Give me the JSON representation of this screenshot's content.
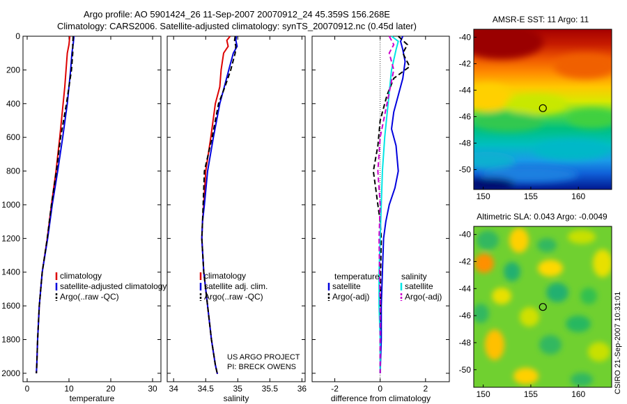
{
  "header": {
    "title_line1": "Argo profile: AO 5901424_26 11-Sep-2007 20070912_24 45.359S 156.268E",
    "title_line2": "Climatology: CARS2006. Satellite-adjusted climatology: synTS_20070912.nc (0.45d later)"
  },
  "footer": {
    "project": "US ARGO PROJECT",
    "pi": "PI: BRECK OWENS",
    "credit": "CSIRO 21-Sep-2007 10:31:01"
  },
  "colors": {
    "climatology": "#dd0000",
    "satellite": "#0000dd",
    "argo": "#000000",
    "satellite_salinity": "#00e5e5",
    "argo_salinity": "#cc00cc"
  },
  "chart_data": [
    {
      "id": "temperature",
      "type": "line",
      "xlabel": "temperature",
      "xlim": [
        -1,
        32
      ],
      "ylim": [
        2050,
        0
      ],
      "xticks": [
        0,
        10,
        20,
        30
      ],
      "yticks": [
        0,
        200,
        400,
        600,
        800,
        1000,
        1200,
        1400,
        1600,
        1800,
        2000
      ],
      "legend": [
        "climatology",
        "satellite-adjusted climatology",
        "Argo(..raw -QC)"
      ],
      "series": [
        {
          "name": "climatology",
          "color": "#dd0000",
          "width": 2,
          "dash": "",
          "x": [
            10.2,
            10.0,
            9.6,
            9.3,
            9.0,
            8.6,
            7.8,
            6.9,
            5.8,
            4.8,
            3.6,
            2.9,
            2.5,
            2.3,
            2.2
          ],
          "y": [
            0,
            50,
            100,
            200,
            300,
            400,
            600,
            800,
            1000,
            1200,
            1400,
            1600,
            1800,
            1950,
            2000
          ]
        },
        {
          "name": "satellite-adjusted climatology",
          "color": "#0000dd",
          "width": 2,
          "dash": "",
          "x": [
            11.2,
            11.0,
            10.7,
            10.4,
            10.0,
            9.6,
            8.5,
            7.3,
            6.0,
            4.9,
            3.6,
            2.9,
            2.5,
            2.3,
            2.2
          ],
          "y": [
            0,
            50,
            100,
            200,
            300,
            400,
            600,
            800,
            1000,
            1200,
            1400,
            1600,
            1800,
            1950,
            2000
          ]
        },
        {
          "name": "Argo(..raw -QC)",
          "color": "#000000",
          "width": 2,
          "dash": "7,4",
          "x": [
            11.0,
            10.9,
            10.9,
            10.6,
            10.0,
            9.4,
            8.0,
            7.0,
            5.8,
            4.8,
            3.6,
            2.9,
            2.5,
            2.3,
            2.2
          ],
          "y": [
            0,
            50,
            100,
            200,
            300,
            400,
            600,
            800,
            1000,
            1200,
            1400,
            1600,
            1800,
            1950,
            2000
          ]
        }
      ]
    },
    {
      "id": "salinity",
      "type": "line",
      "xlabel": "salinity",
      "xlim": [
        33.9,
        36.05
      ],
      "ylim": [
        2050,
        0
      ],
      "xticks": [
        34,
        34.5,
        35,
        35.5,
        36
      ],
      "xticklabels": [
        "34",
        "34.5",
        "35",
        "35.5",
        "36"
      ],
      "yticks": [
        0,
        200,
        400,
        600,
        800,
        1000,
        1200,
        1400,
        1600,
        1800,
        2000
      ],
      "legend": [
        "climatology",
        "satellite adj. clim.",
        "Argo(..raw -QC)"
      ],
      "series": [
        {
          "name": "climatology",
          "color": "#dd0000",
          "width": 2,
          "dash": "",
          "x": [
            34.88,
            34.83,
            34.85,
            34.78,
            34.74,
            34.72,
            34.65,
            34.58,
            34.5,
            34.47,
            34.45,
            34.44,
            34.47,
            34.53,
            34.59,
            34.65,
            34.68,
            34.69
          ],
          "y": [
            0,
            25,
            60,
            100,
            200,
            300,
            400,
            600,
            800,
            1000,
            1100,
            1200,
            1400,
            1600,
            1800,
            1950,
            2000,
            2000
          ]
        },
        {
          "name": "satellite adj. clim.",
          "color": "#0000dd",
          "width": 2,
          "dash": "",
          "x": [
            34.98,
            34.97,
            34.99,
            34.93,
            34.86,
            34.79,
            34.72,
            34.62,
            34.53,
            34.48,
            34.45,
            34.44,
            34.47,
            34.53,
            34.59,
            34.65,
            34.68,
            34.69
          ],
          "y": [
            0,
            25,
            60,
            100,
            200,
            300,
            400,
            600,
            800,
            1000,
            1100,
            1200,
            1400,
            1600,
            1800,
            1950,
            2000,
            2000
          ]
        },
        {
          "name": "Argo(..raw -QC)",
          "color": "#000000",
          "width": 2,
          "dash": "7,4",
          "x": [
            34.96,
            34.95,
            34.97,
            34.96,
            34.89,
            34.8,
            34.7,
            34.6,
            34.48,
            34.46,
            34.45,
            34.44,
            34.47,
            34.53,
            34.59,
            34.65,
            34.68,
            34.69
          ],
          "y": [
            0,
            25,
            60,
            100,
            200,
            300,
            400,
            600,
            800,
            1000,
            1100,
            1200,
            1400,
            1600,
            1800,
            1950,
            2000,
            2000
          ]
        }
      ]
    },
    {
      "id": "difference",
      "type": "line",
      "xlabel": "difference from climatology",
      "xlim": [
        -3,
        3.05
      ],
      "ylim": [
        2050,
        0
      ],
      "xticks": [
        -2,
        0,
        2
      ],
      "yticks": [
        0,
        200,
        400,
        600,
        800,
        1000,
        1200,
        1400,
        1600,
        1800,
        2000
      ],
      "legend_left_title": "temperature",
      "legend_left": [
        "satellite",
        "Argo(-adj)"
      ],
      "legend_right_title": "salinity",
      "legend_right": [
        "satellite",
        "Argo(-adj)"
      ],
      "series": [
        {
          "name": "temperature satellite",
          "color": "#0000dd",
          "width": 2,
          "dash": "",
          "x": [
            1.0,
            0.9,
            1.0,
            1.1,
            1.0,
            0.8,
            0.6,
            0.5,
            0.7,
            0.8,
            0.65,
            0.4,
            0.25,
            0.15,
            0.1,
            0.05,
            0.05,
            0.0
          ],
          "y": [
            0,
            30,
            80,
            150,
            250,
            350,
            450,
            550,
            650,
            800,
            900,
            1000,
            1100,
            1200,
            1400,
            1600,
            1800,
            2000
          ]
        },
        {
          "name": "temperature Argo(-adj)",
          "color": "#000000",
          "width": 2,
          "dash": "7,4",
          "x": [
            0.8,
            1.2,
            1.0,
            1.3,
            0.6,
            0.3,
            0.0,
            -0.1,
            -0.3,
            -0.2,
            -0.1,
            0.0,
            0.05,
            0.02,
            0.0,
            0.0
          ],
          "y": [
            0,
            50,
            100,
            180,
            250,
            350,
            500,
            650,
            800,
            900,
            1000,
            1100,
            1200,
            1400,
            1700,
            2000
          ]
        },
        {
          "name": "salinity satellite",
          "color": "#00e5e5",
          "width": 2,
          "dash": "",
          "x": [
            0.5,
            0.8,
            0.7,
            0.5,
            0.35,
            0.2,
            0.1,
            0.05,
            0.0,
            -0.05,
            -0.05,
            0.0,
            0.0
          ],
          "y": [
            0,
            30,
            80,
            200,
            400,
            600,
            800,
            1000,
            1200,
            1400,
            1600,
            1800,
            2000
          ]
        },
        {
          "name": "salinity Argo(-adj)",
          "color": "#cc00cc",
          "width": 2,
          "dash": "7,4",
          "x": [
            0.4,
            0.6,
            0.4,
            0.6,
            0.3,
            0.0,
            -0.1,
            0.0,
            -0.05,
            0.0,
            0.0
          ],
          "y": [
            0,
            50,
            100,
            200,
            400,
            600,
            800,
            1000,
            1200,
            1600,
            2000
          ]
        }
      ]
    },
    {
      "id": "sst-map",
      "type": "heatmap",
      "title": "AMSR-E SST: 11 Argo: 11",
      "xlim": [
        149,
        163.5
      ],
      "ylim": [
        -51.5,
        -39.4
      ],
      "xticks": [
        150,
        155,
        160
      ],
      "yticks": [
        -40,
        -42,
        -44,
        -46,
        -48,
        -50
      ],
      "marker": {
        "lon": 156.27,
        "lat": -45.36
      }
    },
    {
      "id": "sla-map",
      "type": "heatmap",
      "title": "Altimetric SLA: 0.043 Argo: -0.0049",
      "xlim": [
        149,
        163.5
      ],
      "ylim": [
        -51.3,
        -39.4
      ],
      "xticks": [
        150,
        155,
        160
      ],
      "yticks": [
        -40,
        -42,
        -44,
        -46,
        -48,
        -50
      ],
      "marker": {
        "lon": 156.27,
        "lat": -45.36
      }
    }
  ]
}
